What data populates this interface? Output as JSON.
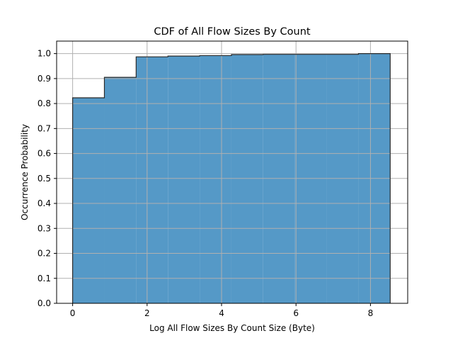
{
  "chart_data": {
    "type": "histogram-cdf",
    "title": "CDF of All Flow Sizes By Count",
    "xlabel": "Log All Flow Sizes By Count Size (Byte)",
    "ylabel": "Occurrence Probability",
    "xlim": [
      -0.43,
      9.0
    ],
    "ylim": [
      0,
      1.05
    ],
    "grid": true,
    "x_ticks": [
      0,
      2,
      4,
      6,
      8
    ],
    "x_tick_labels": [
      "0",
      "2",
      "4",
      "6",
      "8"
    ],
    "y_ticks": [
      0.0,
      0.1,
      0.2,
      0.3,
      0.4,
      0.5,
      0.6,
      0.7,
      0.8,
      0.9,
      1.0
    ],
    "y_tick_labels": [
      "0.0",
      "0.1",
      "0.2",
      "0.3",
      "0.4",
      "0.5",
      "0.6",
      "0.7",
      "0.8",
      "0.9",
      "1.0"
    ],
    "bin_edges": [
      0,
      0.853,
      1.706,
      2.559,
      3.412,
      4.265,
      5.118,
      5.971,
      6.824,
      7.677,
      8.53
    ],
    "values": [
      0.823,
      0.905,
      0.987,
      0.99,
      0.992,
      0.996,
      0.997,
      0.997,
      0.997,
      1.0
    ],
    "fill_color": "#5599c7",
    "edge_color": "#2a2a2a",
    "grid_color": "#b0b0b0"
  }
}
